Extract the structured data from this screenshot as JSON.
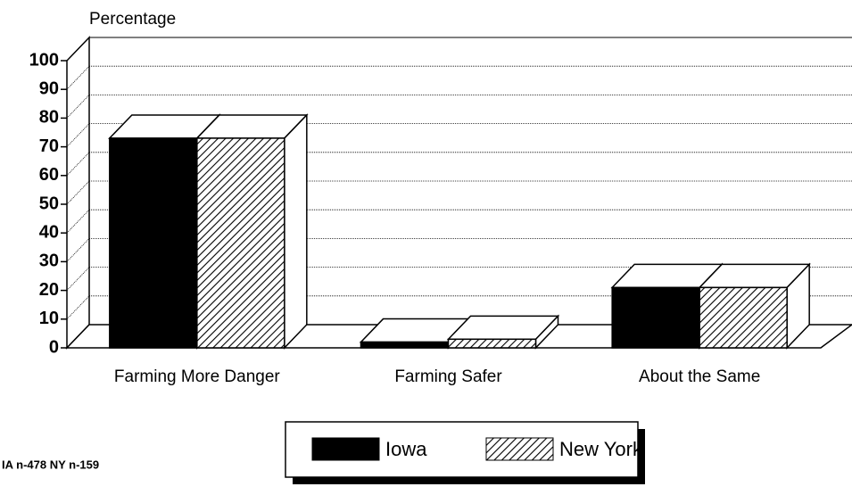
{
  "chart_data": {
    "type": "bar3d",
    "y_axis_label": "Percentage",
    "categories": [
      "Farming More Danger",
      "Farming Safer",
      "About the Same"
    ],
    "series": [
      {
        "name": "Iowa",
        "color": "#000000",
        "values": [
          73,
          2,
          21
        ]
      },
      {
        "name": "New York",
        "color": "#000000",
        "pattern": "hatch",
        "values": [
          73,
          3,
          21
        ]
      }
    ],
    "ylim": [
      0,
      100
    ],
    "yticks": [
      0,
      10,
      20,
      30,
      40,
      50,
      60,
      70,
      80,
      90,
      100
    ],
    "grid": true,
    "legend": "bottom",
    "note": "IA n-478 NY n-159"
  }
}
